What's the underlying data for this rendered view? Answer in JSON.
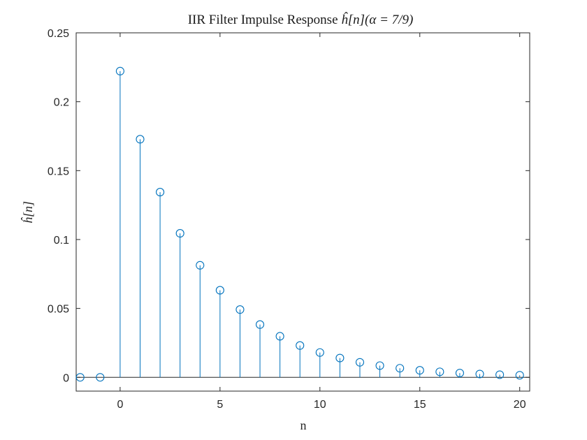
{
  "chart_data": {
    "type": "stem",
    "title_prefix": "IIR Filter Impulse Response ",
    "title_math": "ĥ[n](α = 7/9)",
    "xlabel": "n",
    "ylabel": "ĥ[n]",
    "xlim": [
      -2.2,
      20.5
    ],
    "ylim": [
      -0.01,
      0.25
    ],
    "xticks": [
      0,
      5,
      10,
      15,
      20
    ],
    "yticks": [
      0,
      0.05,
      0.1,
      0.15,
      0.2,
      0.25
    ],
    "ytick_labels": [
      "0",
      "0.05",
      "0.1",
      "0.15",
      "0.2",
      "0.25"
    ],
    "grid": false,
    "baseline": 0,
    "color": "#0072BD",
    "x": [
      -2,
      -1,
      0,
      1,
      2,
      3,
      4,
      5,
      6,
      7,
      8,
      9,
      10,
      11,
      12,
      13,
      14,
      15,
      16,
      17,
      18,
      19,
      20
    ],
    "values": [
      0,
      0,
      0.2222,
      0.1728,
      0.1344,
      0.1045,
      0.0813,
      0.0632,
      0.0492,
      0.0383,
      0.0298,
      0.0231,
      0.018,
      0.014,
      0.0109,
      0.0085,
      0.0066,
      0.0051,
      0.004,
      0.0031,
      0.0024,
      0.0019,
      0.0015
    ]
  }
}
